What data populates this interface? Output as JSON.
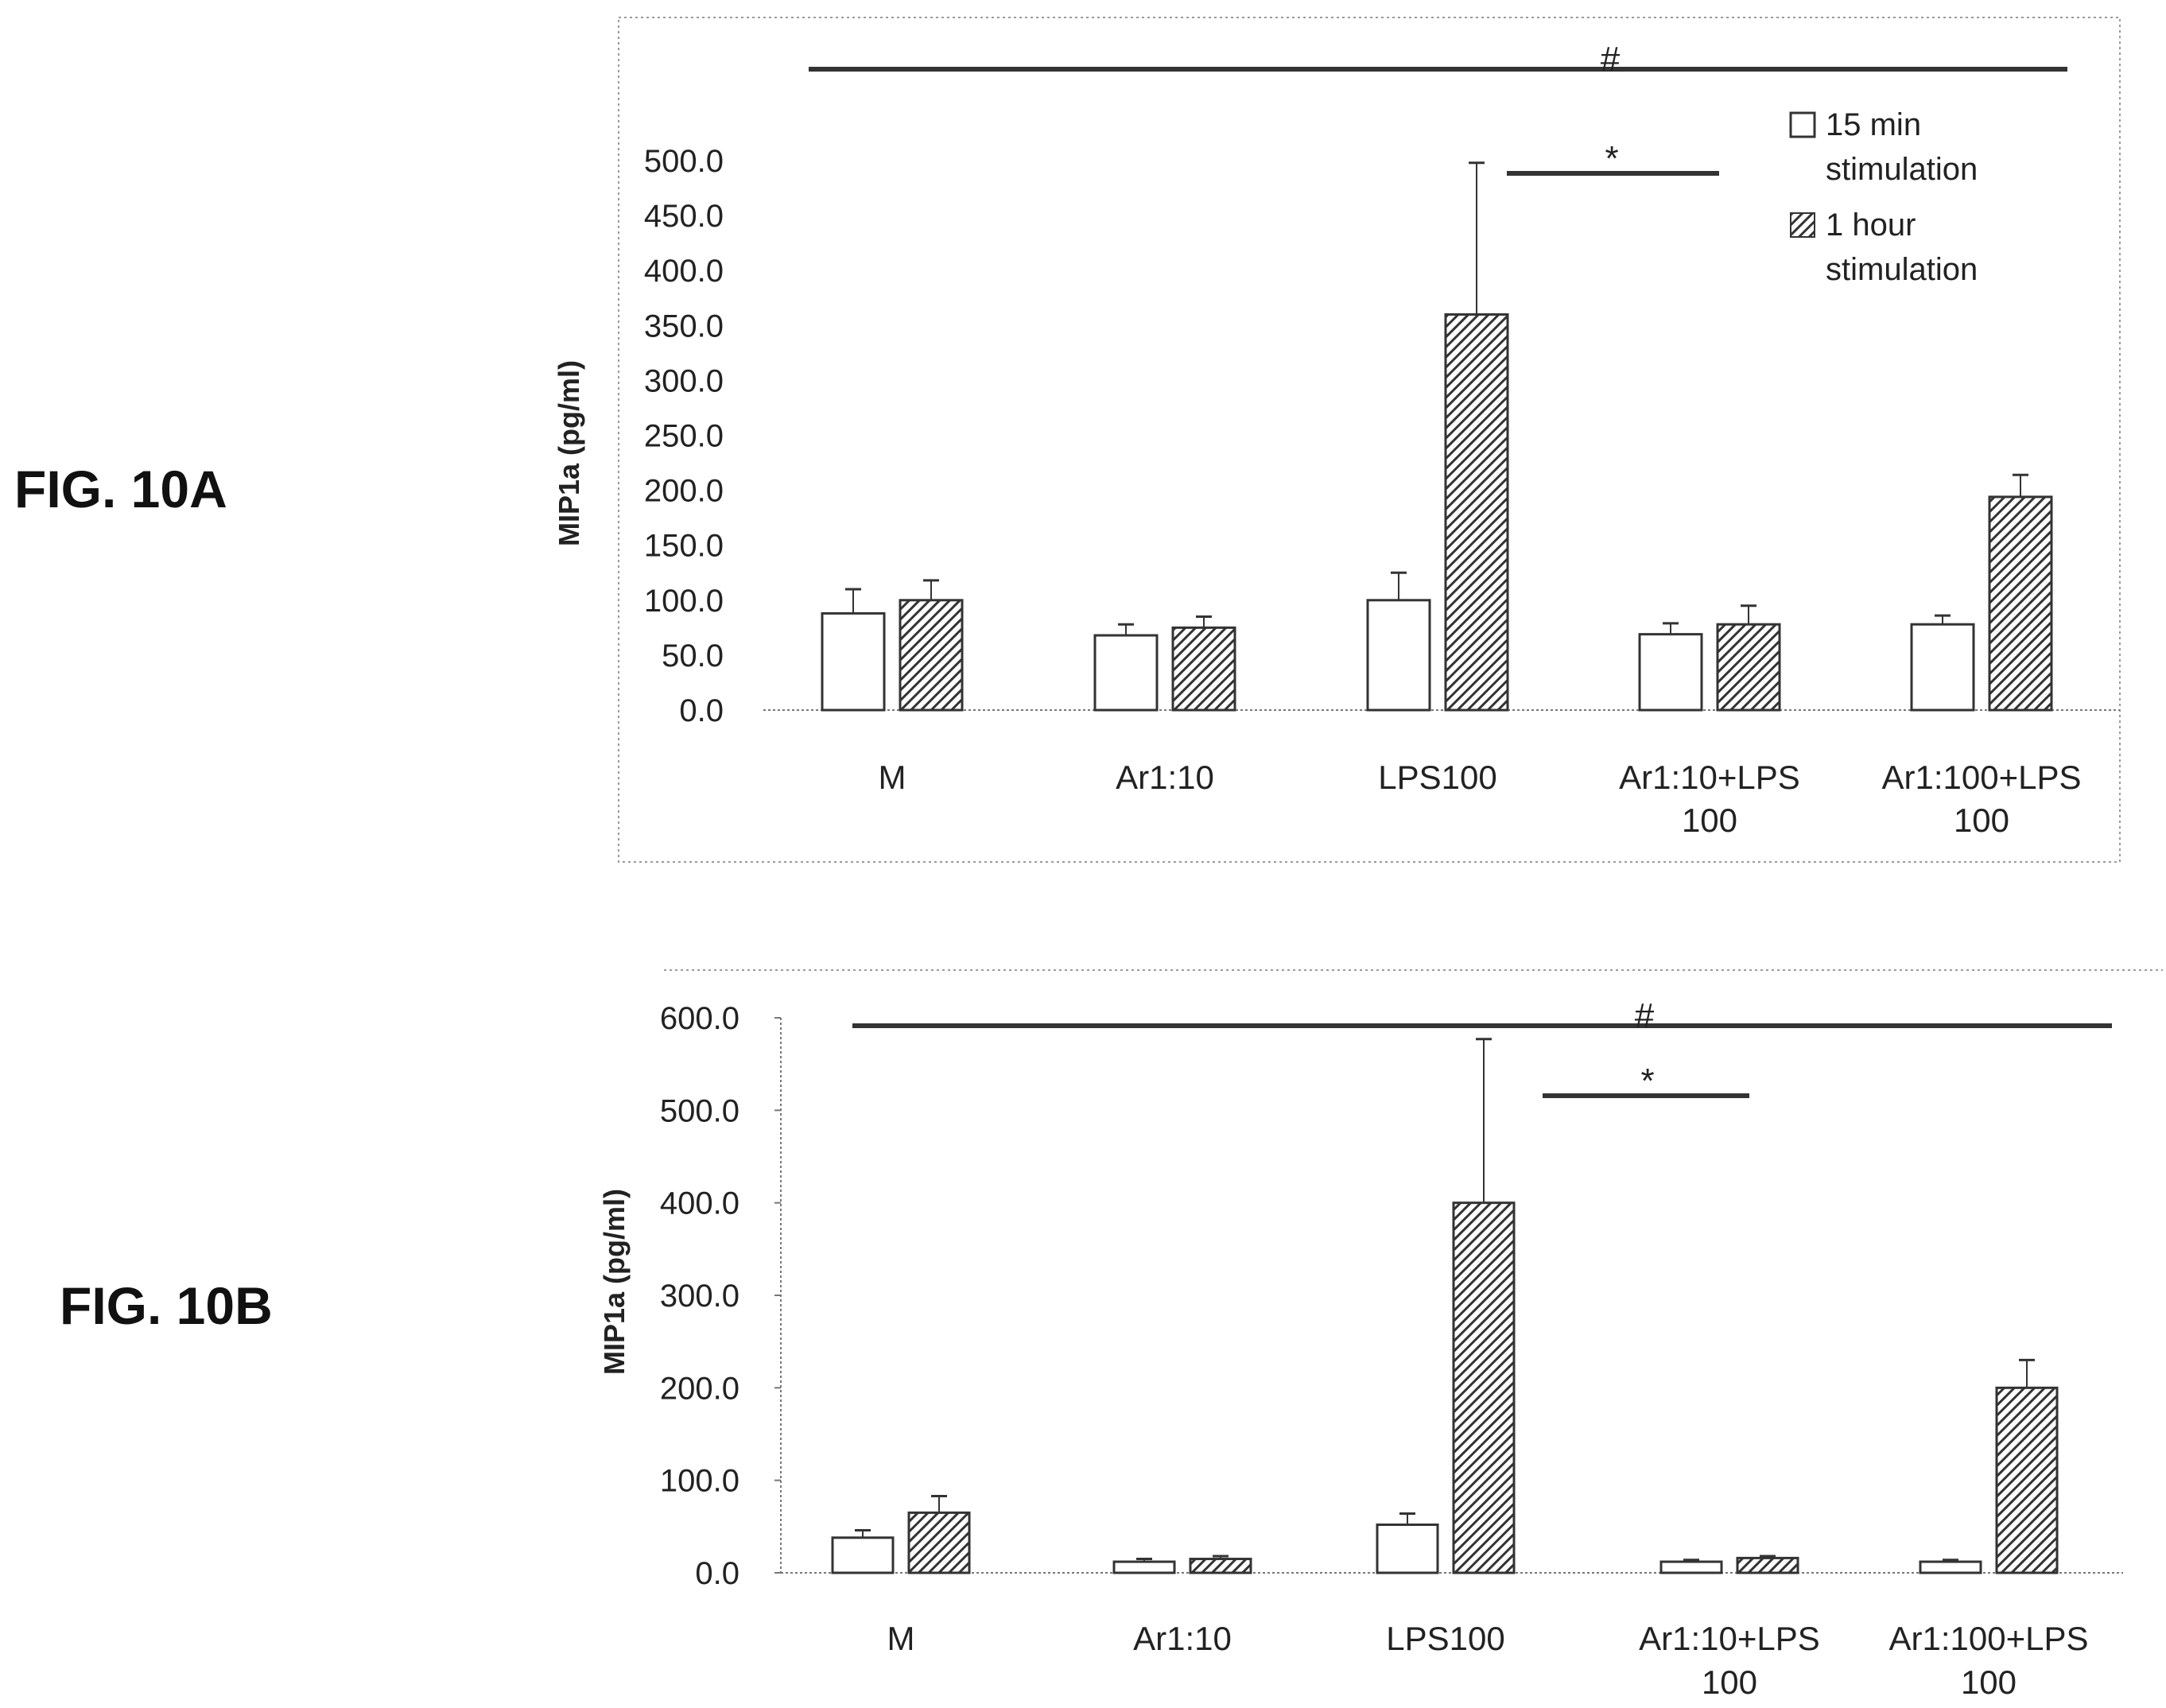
{
  "colors": {
    "bar_open_fill": "#ffffff",
    "bar_hatch": "#333333",
    "axis": "#555555",
    "text": "#222222"
  },
  "legend": {
    "items": [
      {
        "line1": "15 min",
        "line2": "stimulation",
        "style": "open"
      },
      {
        "line1": "1 hour",
        "line2": "stimulation",
        "style": "hatched"
      }
    ]
  },
  "chart_data": [
    {
      "figure_label": "FIG. 10A",
      "type": "bar",
      "ylabel": "MIP1a (pg/ml)",
      "ylim": [
        0,
        500
      ],
      "yticks": [
        "0.0",
        "50.0",
        "100.0",
        "150.0",
        "200.0",
        "250.0",
        "300.0",
        "350.0",
        "400.0",
        "450.0",
        "500.0"
      ],
      "categories": [
        {
          "line1": "M",
          "line2": ""
        },
        {
          "line1": "Ar1:10",
          "line2": ""
        },
        {
          "line1": "LPS100",
          "line2": ""
        },
        {
          "line1": "Ar1:10+LPS",
          "line2": "100"
        },
        {
          "line1": "Ar1:100+LPS",
          "line2": "100"
        }
      ],
      "series": [
        {
          "style": "open",
          "values": [
            88,
            68,
            100,
            69,
            78
          ],
          "errors": [
            22,
            10,
            25,
            10,
            8
          ]
        },
        {
          "style": "hatched",
          "values": [
            100,
            75,
            360,
            78,
            194
          ],
          "errors": [
            18,
            10,
            138,
            17,
            20
          ]
        }
      ],
      "significance": [
        {
          "symbol": "#",
          "span": "all"
        },
        {
          "symbol": "*",
          "span": "LPS100 vs Ar1:10+LPS 100"
        }
      ],
      "grid": false
    },
    {
      "figure_label": "FIG. 10B",
      "type": "bar",
      "ylabel": "MIP1a (pg/ml)",
      "ylim": [
        0,
        600
      ],
      "yticks": [
        "0.0",
        "100.0",
        "200.0",
        "300.0",
        "400.0",
        "500.0",
        "600.0"
      ],
      "categories": [
        {
          "line1": "M",
          "line2": ""
        },
        {
          "line1": "Ar1:10",
          "line2": ""
        },
        {
          "line1": "LPS100",
          "line2": ""
        },
        {
          "line1": "Ar1:10+LPS",
          "line2": "100"
        },
        {
          "line1": "Ar1:100+LPS",
          "line2": "100"
        }
      ],
      "series": [
        {
          "style": "open",
          "values": [
            38,
            12,
            52,
            12,
            12
          ],
          "errors": [
            8,
            3,
            12,
            2,
            2
          ]
        },
        {
          "style": "hatched",
          "values": [
            65,
            15,
            400,
            16,
            200
          ],
          "errors": [
            18,
            3,
            177,
            2,
            30
          ]
        }
      ],
      "significance": [
        {
          "symbol": "#",
          "span": "all"
        },
        {
          "symbol": "*",
          "span": "LPS100 vs Ar1:10+LPS 100"
        }
      ],
      "grid": false
    }
  ]
}
